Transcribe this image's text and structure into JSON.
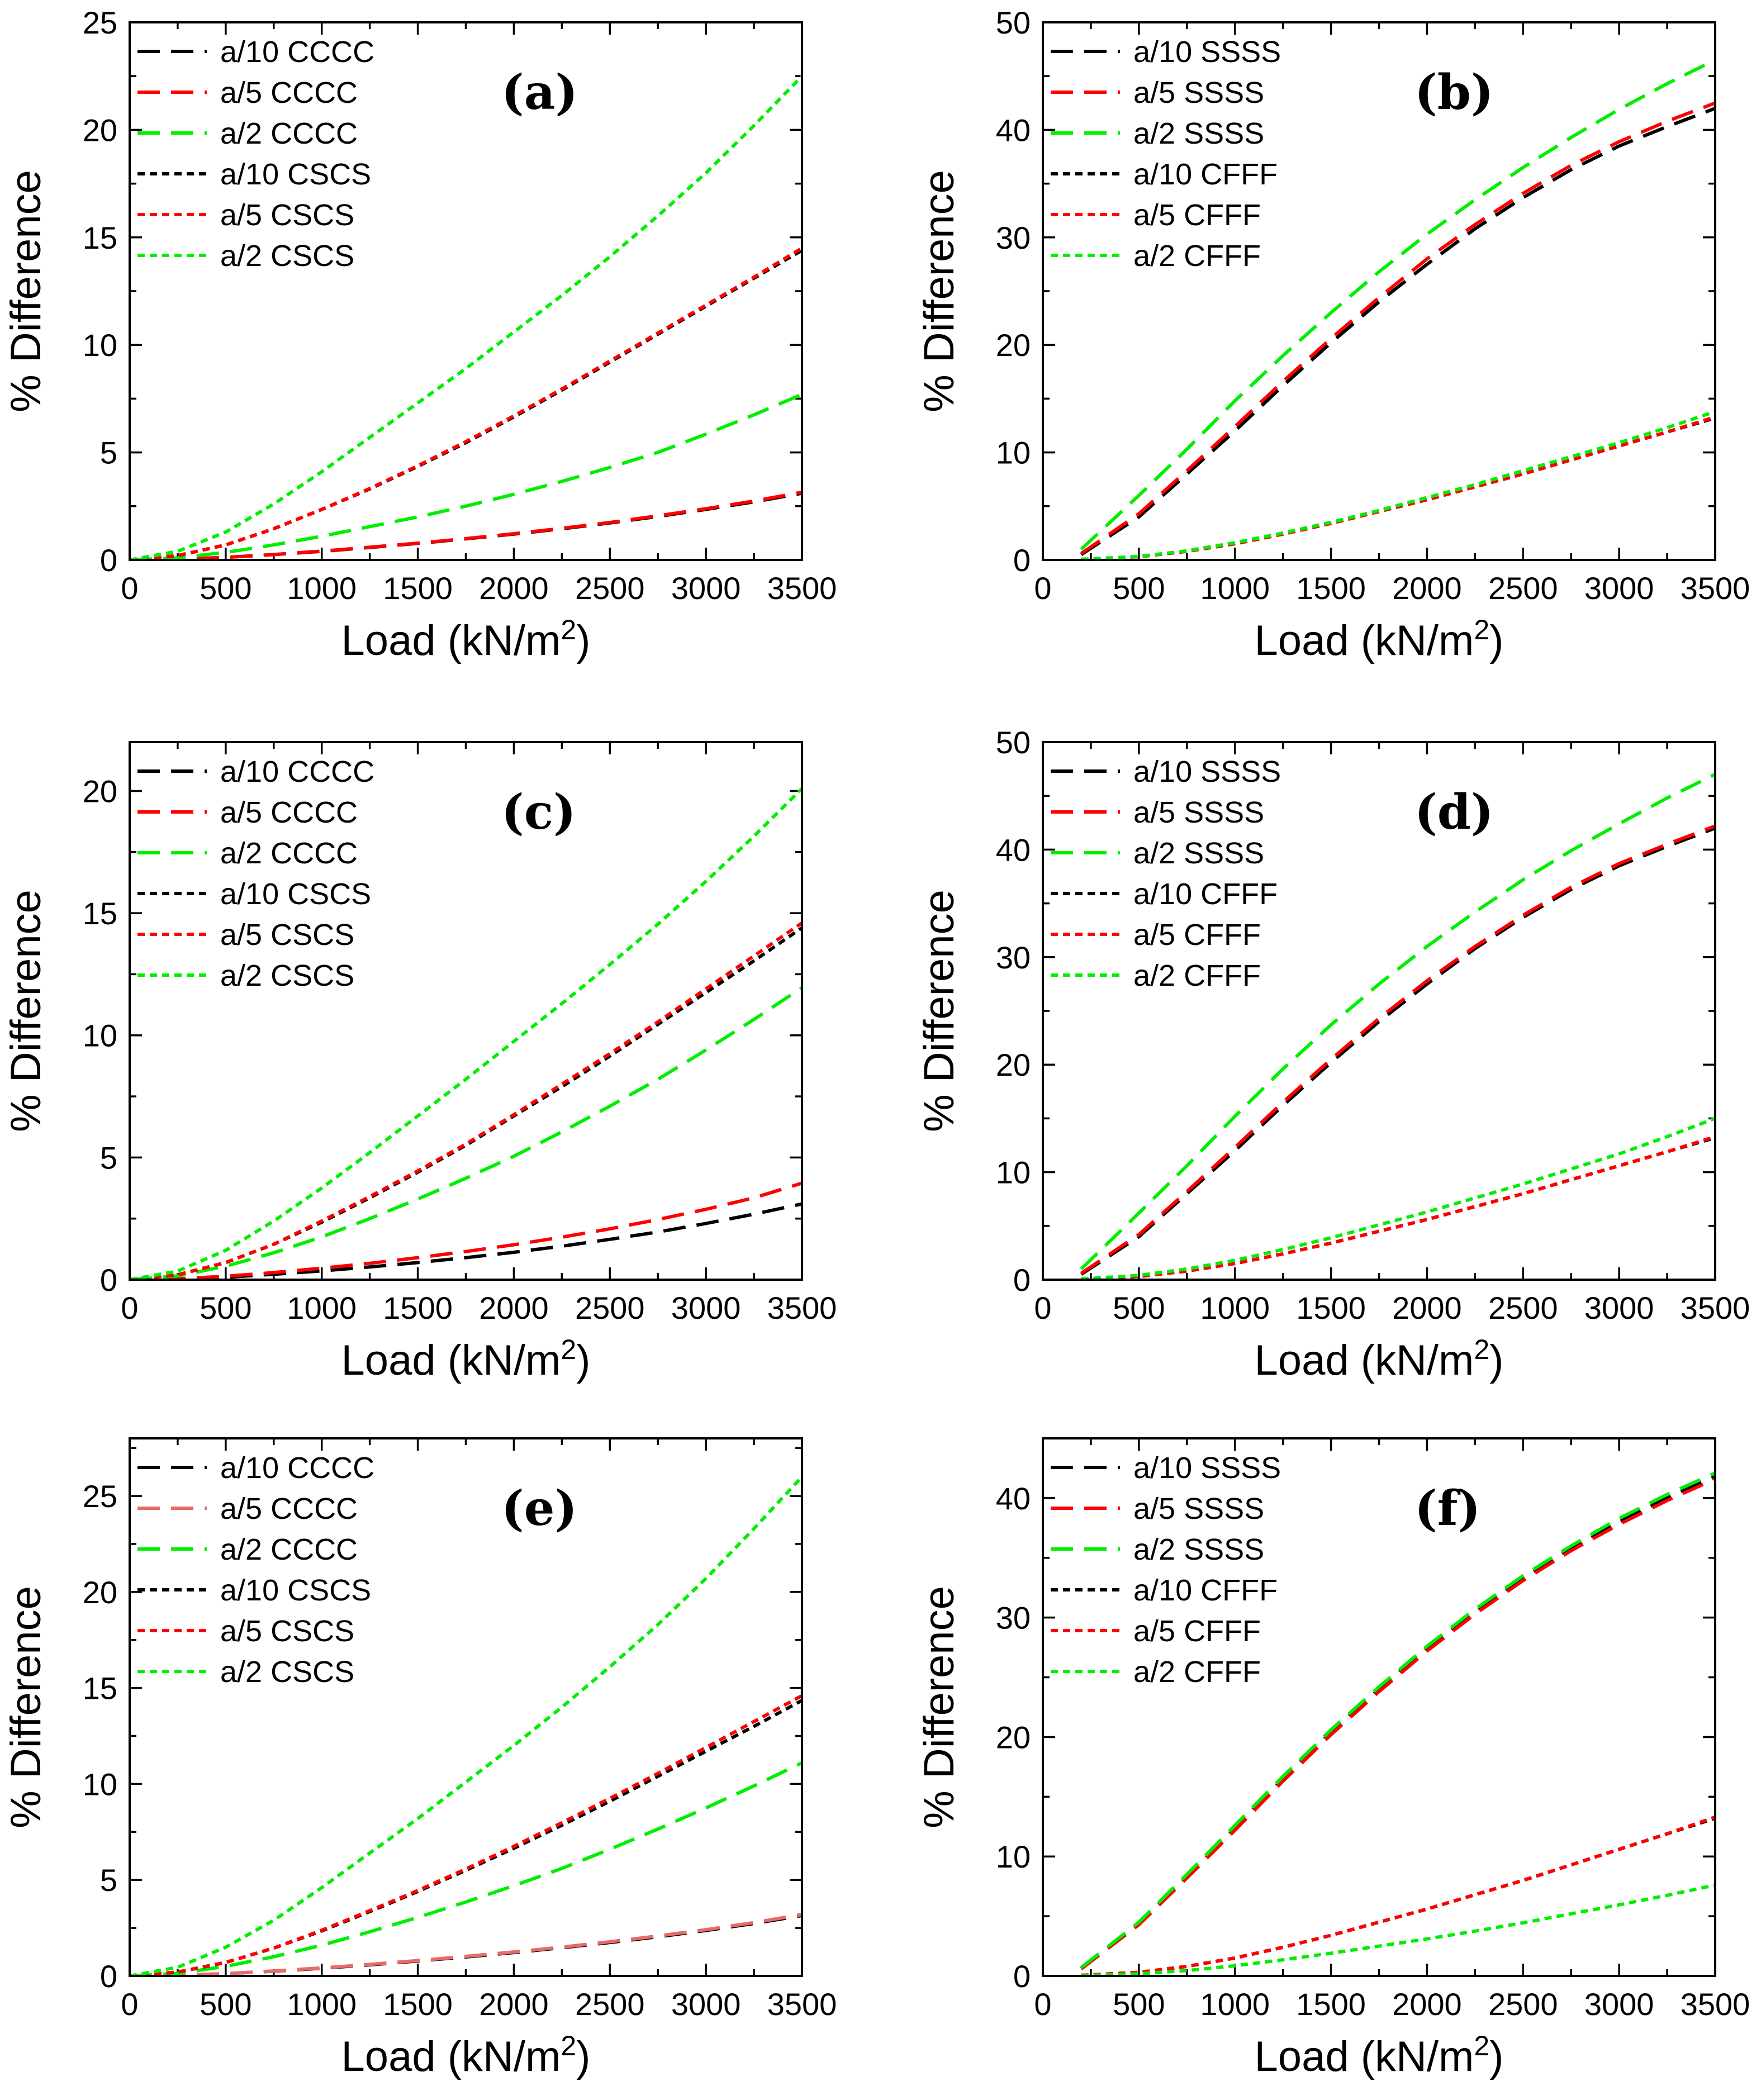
{
  "colors": {
    "a10": "#000000",
    "a5": "#ff0000",
    "a5_light": "#e86a6a",
    "a2": "#00ee00"
  },
  "chart_data": [
    {
      "type": "line",
      "label": "(a)",
      "xlabel": "Load (kN/m",
      "xlabel_sup": "2",
      "xlabel_close": ")",
      "ylabel": "% Difference",
      "xlim": [
        0,
        3500
      ],
      "ylim": [
        0,
        25
      ],
      "xticks": [
        "0",
        "500",
        "1000",
        "1500",
        "2000",
        "2500",
        "3000",
        "3500"
      ],
      "yticks": [
        "0",
        "5",
        "10",
        "15",
        "20",
        "25"
      ],
      "x": [
        0,
        250,
        500,
        750,
        1000,
        1250,
        1500,
        1750,
        2000,
        2250,
        2500,
        2750,
        3000,
        3250,
        3500
      ],
      "series": [
        {
          "name": "a/10 CCCC",
          "style": "dash",
          "color": "a10",
          "values": [
            0,
            0.03,
            0.12,
            0.25,
            0.4,
            0.58,
            0.77,
            0.98,
            1.2,
            1.45,
            1.72,
            2.02,
            2.35,
            2.7,
            3.1
          ]
        },
        {
          "name": "a/5 CCCC",
          "style": "dash",
          "color": "a5",
          "values": [
            0,
            0.03,
            0.12,
            0.25,
            0.41,
            0.59,
            0.78,
            0.99,
            1.22,
            1.47,
            1.74,
            2.05,
            2.38,
            2.74,
            3.15
          ]
        },
        {
          "name": "a/2 CCCC",
          "style": "dash",
          "color": "a2",
          "values": [
            0,
            0.1,
            0.35,
            0.7,
            1.1,
            1.55,
            2.0,
            2.5,
            3.05,
            3.65,
            4.3,
            5.0,
            5.85,
            6.75,
            7.7
          ]
        },
        {
          "name": "a/10 CSCS",
          "style": "dot",
          "color": "a10",
          "values": [
            0,
            0.2,
            0.7,
            1.45,
            2.35,
            3.3,
            4.35,
            5.45,
            6.65,
            7.9,
            9.2,
            10.5,
            11.8,
            13.1,
            14.4
          ]
        },
        {
          "name": "a/5 CSCS",
          "style": "dot",
          "color": "a5",
          "values": [
            0,
            0.2,
            0.7,
            1.45,
            2.35,
            3.32,
            4.38,
            5.5,
            6.7,
            7.95,
            9.25,
            10.55,
            11.85,
            13.15,
            14.5
          ]
        },
        {
          "name": "a/2 CSCS",
          "style": "dot",
          "color": "a2",
          "values": [
            0,
            0.4,
            1.3,
            2.6,
            4.1,
            5.7,
            7.3,
            8.9,
            10.6,
            12.3,
            14.1,
            16.0,
            18.0,
            20.2,
            22.5
          ]
        }
      ]
    },
    {
      "type": "line",
      "label": "(b)",
      "xlabel": "Load (kN/m",
      "xlabel_sup": "2",
      "xlabel_close": ")",
      "ylabel": "% Difference",
      "xlim": [
        0,
        3500
      ],
      "ylim": [
        0,
        50
      ],
      "xticks": [
        "0",
        "500",
        "1000",
        "1500",
        "2000",
        "2500",
        "3000",
        "3500"
      ],
      "yticks": [
        "0",
        "10",
        "20",
        "30",
        "40",
        "50"
      ],
      "x": [
        200,
        500,
        750,
        1000,
        1250,
        1500,
        1750,
        2000,
        2250,
        2500,
        2750,
        3000,
        3250,
        3500
      ],
      "series": [
        {
          "name": "a/10 SSSS",
          "style": "dash",
          "color": "a10",
          "values": [
            0.5,
            4.0,
            8.0,
            12.0,
            16.2,
            20.2,
            24.0,
            27.5,
            30.8,
            33.7,
            36.3,
            38.5,
            40.3,
            42.0
          ]
        },
        {
          "name": "a/5 SSSS",
          "style": "dash",
          "color": "a5",
          "values": [
            0.6,
            4.3,
            8.3,
            12.4,
            16.6,
            20.6,
            24.4,
            28.0,
            31.2,
            34.1,
            36.7,
            38.9,
            40.8,
            42.5
          ]
        },
        {
          "name": "a/2 SSSS",
          "style": "dash",
          "color": "a2",
          "values": [
            1.0,
            6.0,
            10.3,
            14.8,
            19.0,
            23.0,
            26.8,
            30.3,
            33.5,
            36.5,
            39.3,
            41.9,
            44.3,
            46.5
          ]
        },
        {
          "name": "a/10 CFFF",
          "style": "dot",
          "color": "a10",
          "values": [
            0.05,
            0.3,
            0.8,
            1.5,
            2.4,
            3.4,
            4.5,
            5.6,
            6.8,
            8.0,
            9.3,
            10.6,
            11.9,
            13.2
          ]
        },
        {
          "name": "a/5 CFFF",
          "style": "dot",
          "color": "a5",
          "values": [
            0.05,
            0.3,
            0.8,
            1.5,
            2.4,
            3.4,
            4.5,
            5.6,
            6.8,
            8.0,
            9.3,
            10.6,
            11.9,
            13.3
          ]
        },
        {
          "name": "a/2 CFFF",
          "style": "dot",
          "color": "a2",
          "values": [
            0.05,
            0.32,
            0.85,
            1.6,
            2.5,
            3.5,
            4.6,
            5.8,
            7.0,
            8.3,
            9.6,
            10.9,
            12.3,
            13.8
          ]
        }
      ]
    },
    {
      "type": "line",
      "label": "(c)",
      "xlabel": "Load (kN/m",
      "xlabel_sup": "2",
      "xlabel_close": ")",
      "ylabel": "% Difference",
      "xlim": [
        0,
        3500
      ],
      "ylim": [
        0,
        22
      ],
      "xticks": [
        "0",
        "500",
        "1000",
        "1500",
        "2000",
        "2500",
        "3000",
        "3500"
      ],
      "yticks": [
        "0",
        "5",
        "10",
        "15",
        "20"
      ],
      "x": [
        0,
        250,
        500,
        750,
        1000,
        1250,
        1500,
        1750,
        2000,
        2250,
        2500,
        2750,
        3000,
        3250,
        3500
      ],
      "series": [
        {
          "name": "a/10 CCCC",
          "style": "dash",
          "color": "a10",
          "values": [
            0,
            0.03,
            0.1,
            0.22,
            0.36,
            0.52,
            0.7,
            0.9,
            1.12,
            1.37,
            1.65,
            1.95,
            2.3,
            2.68,
            3.1
          ]
        },
        {
          "name": "a/5 CCCC",
          "style": "dash",
          "color": "a5",
          "values": [
            0,
            0.04,
            0.14,
            0.29,
            0.47,
            0.67,
            0.9,
            1.15,
            1.43,
            1.74,
            2.08,
            2.46,
            2.88,
            3.35,
            3.95
          ]
        },
        {
          "name": "a/2 CCCC",
          "style": "dash",
          "color": "a2",
          "values": [
            0,
            0.15,
            0.55,
            1.1,
            1.75,
            2.5,
            3.3,
            4.15,
            5.05,
            6.05,
            7.1,
            8.2,
            9.4,
            10.65,
            11.95
          ]
        },
        {
          "name": "a/10 CSCS",
          "style": "dot",
          "color": "a10",
          "values": [
            0,
            0.2,
            0.7,
            1.45,
            2.35,
            3.35,
            4.4,
            5.5,
            6.7,
            7.9,
            9.15,
            10.45,
            11.75,
            13.05,
            14.4
          ]
        },
        {
          "name": "a/5 CSCS",
          "style": "dot",
          "color": "a5",
          "values": [
            0,
            0.2,
            0.7,
            1.45,
            2.4,
            3.4,
            4.45,
            5.55,
            6.75,
            8.0,
            9.25,
            10.55,
            11.9,
            13.25,
            14.6
          ]
        },
        {
          "name": "a/2 CSCS",
          "style": "dot",
          "color": "a2",
          "values": [
            0,
            0.35,
            1.2,
            2.4,
            3.75,
            5.2,
            6.7,
            8.2,
            9.75,
            11.3,
            12.9,
            14.55,
            16.3,
            18.15,
            20.1
          ]
        }
      ]
    },
    {
      "type": "line",
      "label": "(d)",
      "xlabel": "Load (kN/m",
      "xlabel_sup": "2",
      "xlabel_close": ")",
      "ylabel": "% Difference",
      "xlim": [
        0,
        3500
      ],
      "ylim": [
        0,
        50
      ],
      "xticks": [
        "0",
        "500",
        "1000",
        "1500",
        "2000",
        "2500",
        "3000",
        "3500"
      ],
      "yticks": [
        "0",
        "10",
        "20",
        "30",
        "40",
        "50"
      ],
      "x": [
        200,
        500,
        750,
        1000,
        1250,
        1500,
        1750,
        2000,
        2250,
        2500,
        2750,
        3000,
        3250,
        3500
      ],
      "series": [
        {
          "name": "a/10 SSSS",
          "style": "dash",
          "color": "a10",
          "values": [
            0.5,
            4.0,
            8.0,
            12.0,
            16.2,
            20.2,
            24.0,
            27.5,
            30.8,
            33.7,
            36.3,
            38.5,
            40.3,
            42.0
          ]
        },
        {
          "name": "a/5 SSSS",
          "style": "dash",
          "color": "a5",
          "values": [
            0.6,
            4.2,
            8.2,
            12.3,
            16.5,
            20.5,
            24.3,
            27.8,
            31.0,
            33.9,
            36.5,
            38.7,
            40.5,
            42.2
          ]
        },
        {
          "name": "a/2 SSSS",
          "style": "dash",
          "color": "a2",
          "values": [
            1.0,
            6.2,
            10.6,
            15.2,
            19.6,
            23.7,
            27.5,
            31.0,
            34.2,
            37.2,
            39.9,
            42.4,
            44.8,
            47.0
          ]
        },
        {
          "name": "a/10 CFFF",
          "style": "dot",
          "color": "a10",
          "values": [
            0.05,
            0.3,
            0.8,
            1.5,
            2.4,
            3.4,
            4.5,
            5.6,
            6.8,
            8.0,
            9.3,
            10.6,
            11.9,
            13.2
          ]
        },
        {
          "name": "a/5 CFFF",
          "style": "dot",
          "color": "a5",
          "values": [
            0.05,
            0.3,
            0.8,
            1.5,
            2.4,
            3.4,
            4.5,
            5.6,
            6.8,
            8.0,
            9.3,
            10.6,
            11.9,
            13.3
          ]
        },
        {
          "name": "a/2 CFFF",
          "style": "dot",
          "color": "a2",
          "values": [
            0.06,
            0.4,
            1.0,
            1.8,
            2.8,
            3.9,
            5.1,
            6.3,
            7.6,
            8.9,
            10.3,
            11.7,
            13.3,
            15.0
          ]
        }
      ]
    },
    {
      "type": "line",
      "label": "(e)",
      "xlabel": "Load (kN/m",
      "xlabel_sup": "2",
      "xlabel_close": ")",
      "ylabel": "% Difference",
      "xlim": [
        0,
        3500
      ],
      "ylim": [
        0,
        28
      ],
      "xticks": [
        "0",
        "500",
        "1000",
        "1500",
        "2000",
        "2500",
        "3000",
        "3500"
      ],
      "yticks": [
        "0",
        "5",
        "10",
        "15",
        "20",
        "25"
      ],
      "x": [
        0,
        250,
        500,
        750,
        1000,
        1250,
        1500,
        1750,
        2000,
        2250,
        2500,
        2750,
        3000,
        3250,
        3500
      ],
      "series": [
        {
          "name": "a/10 CCCC",
          "style": "dash",
          "color": "a10",
          "values": [
            0,
            0.03,
            0.12,
            0.25,
            0.4,
            0.58,
            0.78,
            0.99,
            1.22,
            1.47,
            1.74,
            2.04,
            2.37,
            2.73,
            3.15
          ]
        },
        {
          "name": "a/5 CCCC",
          "style": "dash",
          "color": "a5_light",
          "values": [
            0,
            0.03,
            0.12,
            0.26,
            0.42,
            0.6,
            0.8,
            1.02,
            1.25,
            1.5,
            1.78,
            2.08,
            2.41,
            2.78,
            3.2
          ]
        },
        {
          "name": "a/2 CCCC",
          "style": "dash",
          "color": "a2",
          "values": [
            0,
            0.13,
            0.5,
            1.0,
            1.6,
            2.3,
            3.05,
            3.85,
            4.7,
            5.6,
            6.6,
            7.65,
            8.75,
            9.9,
            11.1
          ]
        },
        {
          "name": "a/10 CSCS",
          "style": "dot",
          "color": "a10",
          "values": [
            0,
            0.2,
            0.7,
            1.45,
            2.35,
            3.35,
            4.4,
            5.5,
            6.65,
            7.85,
            9.1,
            10.4,
            11.7,
            13.0,
            14.35
          ]
        },
        {
          "name": "a/5 CSCS",
          "style": "dot",
          "color": "a5",
          "values": [
            0,
            0.2,
            0.7,
            1.45,
            2.38,
            3.4,
            4.45,
            5.57,
            6.75,
            7.98,
            9.25,
            10.55,
            11.9,
            13.25,
            14.6
          ]
        },
        {
          "name": "a/2 CSCS",
          "style": "dot",
          "color": "a2",
          "values": [
            0,
            0.45,
            1.5,
            2.9,
            4.6,
            6.4,
            8.2,
            10.1,
            12.0,
            14.0,
            16.1,
            18.3,
            20.7,
            23.3,
            26.0
          ]
        }
      ]
    },
    {
      "type": "line",
      "label": "(f)",
      "xlabel": "Load (kN/m",
      "xlabel_sup": "2",
      "xlabel_close": ")",
      "ylabel": "% Difference",
      "xlim": [
        0,
        3500
      ],
      "ylim": [
        0,
        45
      ],
      "xticks": [
        "0",
        "500",
        "1000",
        "1500",
        "2000",
        "2500",
        "3000",
        "3500"
      ],
      "yticks": [
        "0",
        "10",
        "20",
        "30",
        "40"
      ],
      "x": [
        200,
        500,
        750,
        1000,
        1250,
        1500,
        1750,
        2000,
        2250,
        2500,
        2750,
        3000,
        3250,
        3500
      ],
      "series": [
        {
          "name": "a/10 SSSS",
          "style": "dash",
          "color": "a10",
          "values": [
            0.6,
            4.3,
            8.3,
            12.4,
            16.5,
            20.4,
            24.0,
            27.4,
            30.5,
            33.3,
            35.8,
            38.0,
            40.0,
            41.8
          ]
        },
        {
          "name": "a/5 SSSS",
          "style": "dash",
          "color": "a5",
          "values": [
            0.6,
            4.3,
            8.2,
            12.2,
            16.3,
            20.2,
            23.8,
            27.2,
            30.3,
            33.1,
            35.6,
            37.8,
            39.8,
            41.6
          ]
        },
        {
          "name": "a/2 SSSS",
          "style": "dash",
          "color": "a2",
          "values": [
            0.7,
            4.5,
            8.5,
            12.6,
            16.7,
            20.6,
            24.2,
            27.6,
            30.7,
            33.5,
            36.0,
            38.3,
            40.3,
            42.1
          ]
        },
        {
          "name": "a/10 CFFF",
          "style": "dot",
          "color": "a10",
          "values": [
            0.05,
            0.3,
            0.8,
            1.5,
            2.4,
            3.4,
            4.5,
            5.6,
            6.8,
            8.0,
            9.3,
            10.6,
            11.9,
            13.2
          ]
        },
        {
          "name": "a/5 CFFF",
          "style": "dot",
          "color": "a5",
          "values": [
            0.05,
            0.3,
            0.8,
            1.5,
            2.4,
            3.4,
            4.5,
            5.6,
            6.8,
            8.0,
            9.3,
            10.6,
            11.9,
            13.3
          ]
        },
        {
          "name": "a/2 CFFF",
          "style": "dot",
          "color": "a2",
          "values": [
            0.03,
            0.18,
            0.45,
            0.85,
            1.35,
            1.9,
            2.5,
            3.1,
            3.75,
            4.45,
            5.2,
            5.95,
            6.75,
            7.6
          ]
        }
      ]
    }
  ]
}
